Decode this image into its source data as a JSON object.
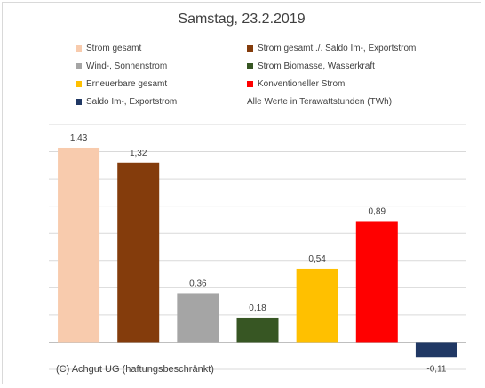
{
  "title": "Samstag, 23.2.2019",
  "unit_note": "Alle Werte in Terawattstunden (TWh)",
  "copyright": "(C) Achgut UG (haftungsbeschränkt)",
  "legend": [
    {
      "label": "Strom gesamt",
      "color": "#f8cbad"
    },
    {
      "label": "Strom gesamt ./. Saldo Im-, Exportstrom",
      "color": "#843c0c"
    },
    {
      "label": "Wind-, Sonnenstrom",
      "color": "#a5a5a5"
    },
    {
      "label": "Strom Biomasse, Wasserkraft",
      "color": "#375623"
    },
    {
      "label": "Erneuerbare gesamt",
      "color": "#ffc000"
    },
    {
      "label": "Konventioneller Strom",
      "color": "#ff0000"
    },
    {
      "label": "Saldo Im-, Exportstrom",
      "color": "#203864"
    }
  ],
  "chart_data": {
    "type": "bar",
    "title": "Samstag, 23.2.2019",
    "categories": [
      "Strom gesamt",
      "Strom gesamt ./. Saldo Im-, Exportstrom",
      "Wind-, Sonnenstrom",
      "Strom Biomasse, Wasserkraft",
      "Erneuerbare gesamt",
      "Konventioneller Strom",
      "Saldo Im-, Exportstrom"
    ],
    "values": [
      1.43,
      1.32,
      0.36,
      0.18,
      0.54,
      0.89,
      -0.11
    ],
    "value_labels": [
      "1,43",
      "1,32",
      "0,36",
      "0,18",
      "0,54",
      "0,89",
      "-0,11"
    ],
    "colors": [
      "#f8cbad",
      "#843c0c",
      "#a5a5a5",
      "#375623",
      "#ffc000",
      "#ff0000",
      "#203864"
    ],
    "ylim": [
      -0.2,
      1.6
    ],
    "grid": true,
    "legend_position": "top",
    "xlabel": "",
    "ylabel": ""
  }
}
